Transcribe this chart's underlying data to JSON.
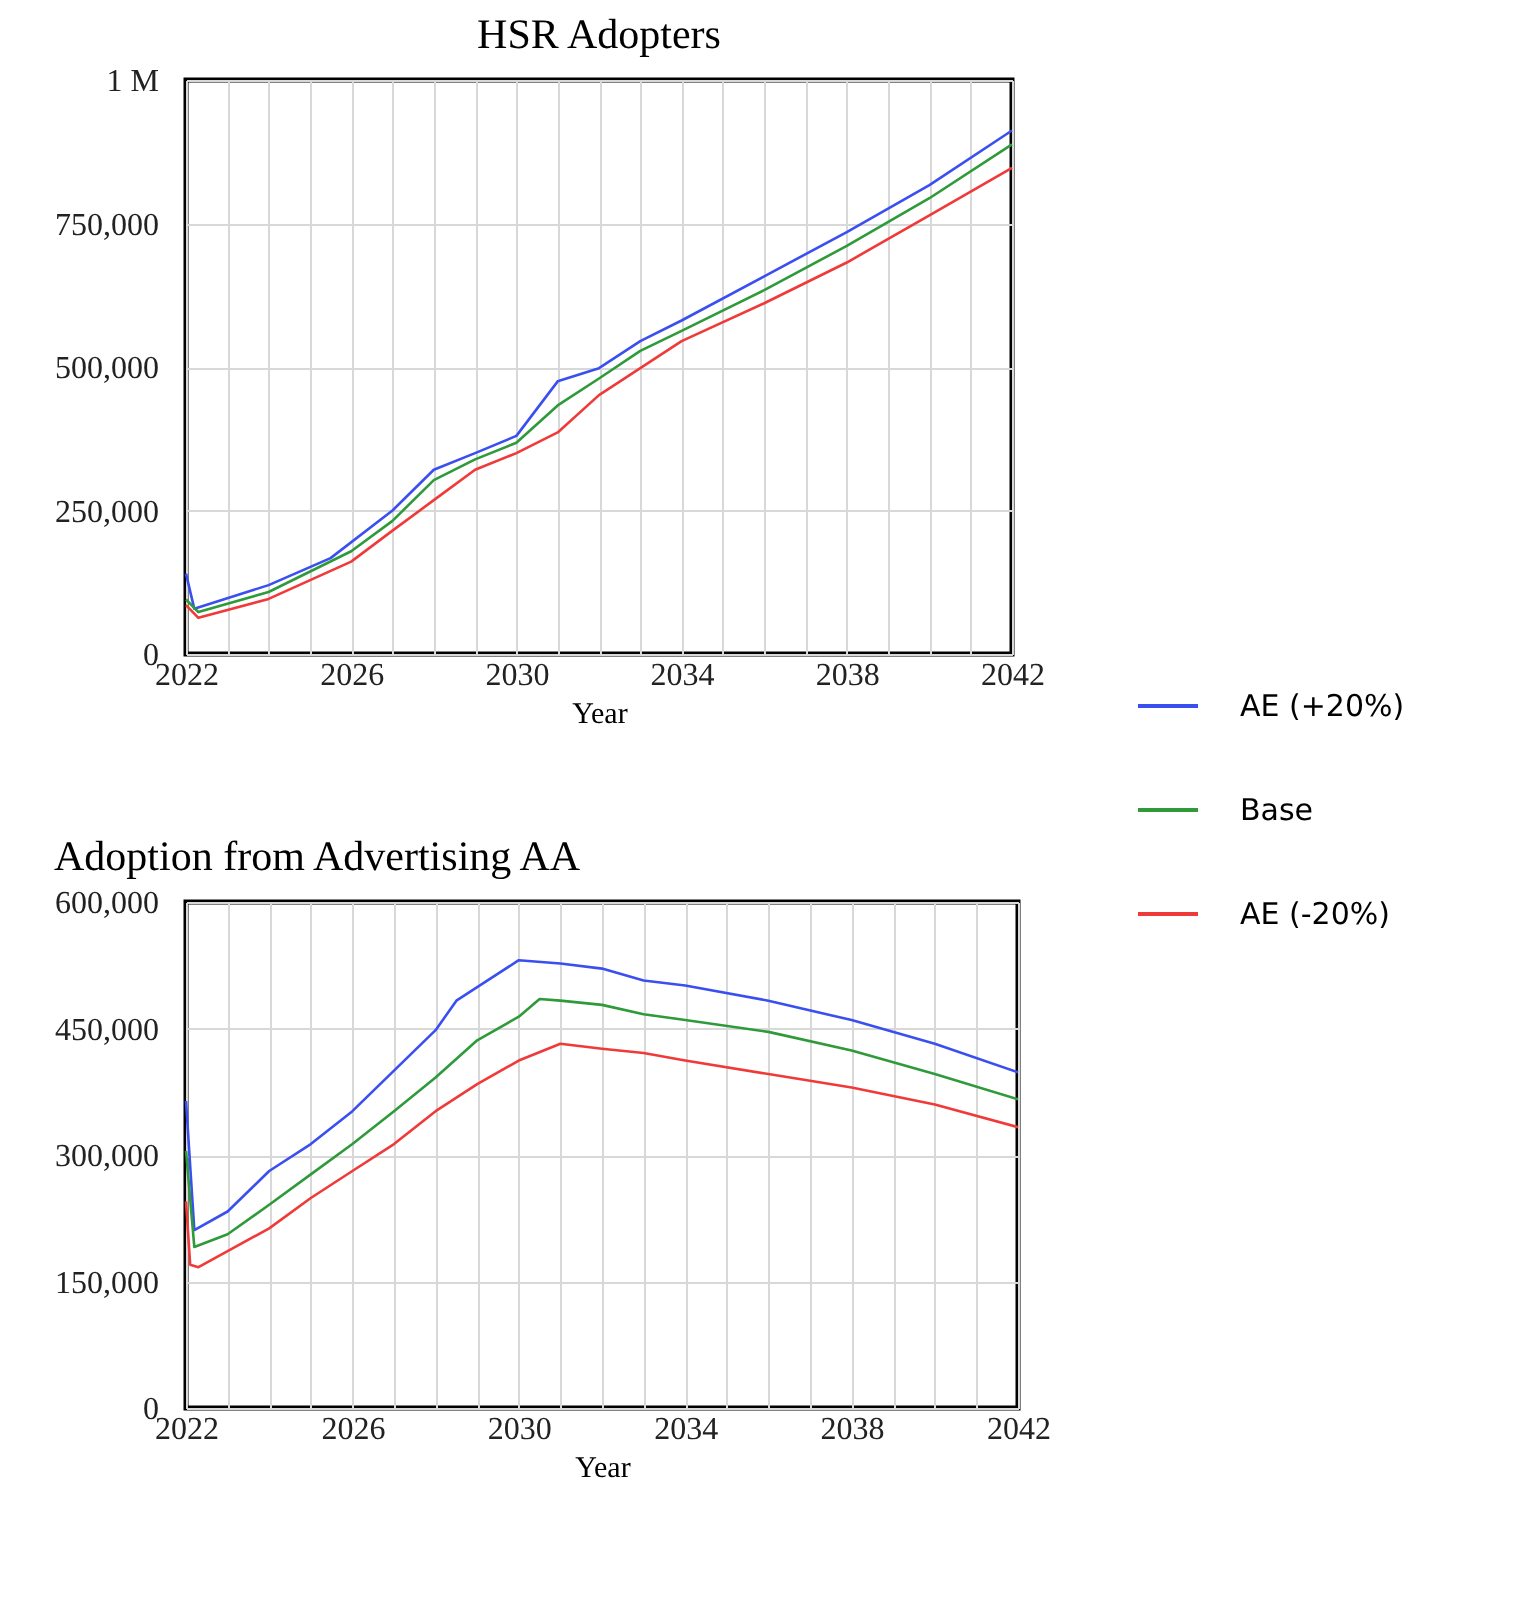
{
  "chart_data": [
    {
      "type": "line",
      "title": "HSR Adopters",
      "xlabel": "Year",
      "legend": "right",
      "grid": true,
      "xlim": [
        2022,
        2042
      ],
      "xticks": [
        2022,
        {
          "value": 2023,
          "label": null
        },
        {
          "value": 2024,
          "label": null
        },
        {
          "value": 2025,
          "label": null
        },
        2026,
        {
          "value": 2027,
          "label": null
        },
        {
          "value": 2028,
          "label": null
        },
        {
          "value": 2029,
          "label": null
        },
        2030,
        {
          "value": 2031,
          "label": null
        },
        {
          "value": 2032,
          "label": null
        },
        {
          "value": 2033,
          "label": null
        },
        2034,
        {
          "value": 2035,
          "label": null
        },
        {
          "value": 2036,
          "label": null
        },
        {
          "value": 2037,
          "label": null
        },
        2038,
        {
          "value": 2039,
          "label": null
        },
        {
          "value": 2040,
          "label": null
        },
        {
          "value": 2041,
          "label": null
        },
        2042
      ],
      "ylim": [
        0,
        1000000
      ],
      "yticks": [
        0,
        {
          "value": 250000,
          "label": "250,000"
        },
        {
          "value": 500000,
          "label": "500,000"
        },
        {
          "value": 750000,
          "label": "750,000"
        },
        {
          "value": 1000000,
          "label": "1 M"
        }
      ],
      "series": [
        {
          "name": "AE (+20%)",
          "color": "#3a4ff0",
          "x": [
            2022,
            2022.2,
            2024,
            2025.5,
            2027,
            2028,
            2029,
            2030,
            2031,
            2032,
            2033,
            2034,
            2036,
            2038,
            2040,
            2042
          ],
          "values": [
            140000,
            79000,
            120000,
            167000,
            250000,
            321000,
            350000,
            380000,
            475000,
            498000,
            545000,
            581000,
            658000,
            735000,
            817000,
            912000
          ]
        },
        {
          "name": "Base",
          "color": "#2e9a3a",
          "x": [
            2022,
            2022.3,
            2024,
            2026,
            2027,
            2028,
            2029,
            2030,
            2031,
            2032,
            2033,
            2034,
            2036,
            2038,
            2040,
            2042
          ],
          "values": [
            95000,
            73000,
            108000,
            179000,
            232000,
            303000,
            339000,
            368000,
            433000,
            480000,
            528000,
            563000,
            634000,
            711000,
            794000,
            888000
          ]
        },
        {
          "name": "AE (-20%)",
          "color": "#f03a3a",
          "x": [
            2022,
            2022.3,
            2024,
            2026,
            2027,
            2028,
            2029,
            2030,
            2031,
            2032,
            2033,
            2034,
            2036,
            2038,
            2040,
            2042
          ],
          "values": [
            85000,
            63000,
            96000,
            161000,
            215000,
            268000,
            321000,
            350000,
            386000,
            451000,
            498000,
            545000,
            611000,
            682000,
            764000,
            847000
          ]
        }
      ]
    },
    {
      "type": "line",
      "title": "Adoption from Advertising AA",
      "xlabel": "Year",
      "legend": "right",
      "grid": true,
      "xlim": [
        2022,
        2042
      ],
      "xticks": [
        2022,
        {
          "value": 2023,
          "label": null
        },
        {
          "value": 2024,
          "label": null
        },
        {
          "value": 2025,
          "label": null
        },
        2026,
        {
          "value": 2027,
          "label": null
        },
        {
          "value": 2028,
          "label": null
        },
        {
          "value": 2029,
          "label": null
        },
        2030,
        {
          "value": 2031,
          "label": null
        },
        {
          "value": 2032,
          "label": null
        },
        {
          "value": 2033,
          "label": null
        },
        2034,
        {
          "value": 2035,
          "label": null
        },
        {
          "value": 2036,
          "label": null
        },
        {
          "value": 2037,
          "label": null
        },
        2038,
        {
          "value": 2039,
          "label": null
        },
        {
          "value": 2040,
          "label": null
        },
        {
          "value": 2041,
          "label": null
        },
        2042
      ],
      "ylim": [
        0,
        600000
      ],
      "yticks": [
        0,
        {
          "value": 150000,
          "label": "150,000"
        },
        {
          "value": 300000,
          "label": "300,000"
        },
        {
          "value": 450000,
          "label": "450,000"
        },
        {
          "value": 600000,
          "label": "600,000"
        }
      ],
      "series": [
        {
          "name": "AE (+20%)",
          "color": "#3a4ff0",
          "x": [
            2022,
            2022.2,
            2023,
            2024,
            2025,
            2026,
            2027,
            2028,
            2028.5,
            2029,
            2030,
            2031,
            2032,
            2033,
            2034,
            2036,
            2038,
            2040,
            2042
          ],
          "values": [
            364000,
            211000,
            233000,
            281000,
            313000,
            352000,
            400000,
            448000,
            483000,
            499000,
            531000,
            527000,
            521000,
            507000,
            501000,
            483000,
            460000,
            432000,
            398000
          ]
        },
        {
          "name": "Base",
          "color": "#2e9a3a",
          "x": [
            2022,
            2022.2,
            2023,
            2024,
            2025,
            2026,
            2027,
            2028,
            2029,
            2030,
            2030.5,
            2031,
            2032,
            2033,
            2034,
            2036,
            2038,
            2040,
            2042
          ],
          "values": [
            305000,
            191000,
            206000,
            241000,
            277000,
            313000,
            352000,
            392000,
            436000,
            464000,
            485000,
            483000,
            478000,
            467000,
            460000,
            446000,
            424000,
            396000,
            366000
          ]
        },
        {
          "name": "AE (-20%)",
          "color": "#f03a3a",
          "x": [
            2022,
            2022.1,
            2022.3,
            2023,
            2024,
            2025,
            2026,
            2027,
            2028,
            2029,
            2030,
            2031,
            2032,
            2033,
            2034,
            2036,
            2038,
            2040,
            2042
          ],
          "values": [
            245000,
            170000,
            167000,
            186000,
            213000,
            249000,
            281000,
            313000,
            352000,
            384000,
            412000,
            432000,
            426000,
            421000,
            412000,
            396000,
            380000,
            360000,
            333000
          ]
        }
      ]
    }
  ]
}
